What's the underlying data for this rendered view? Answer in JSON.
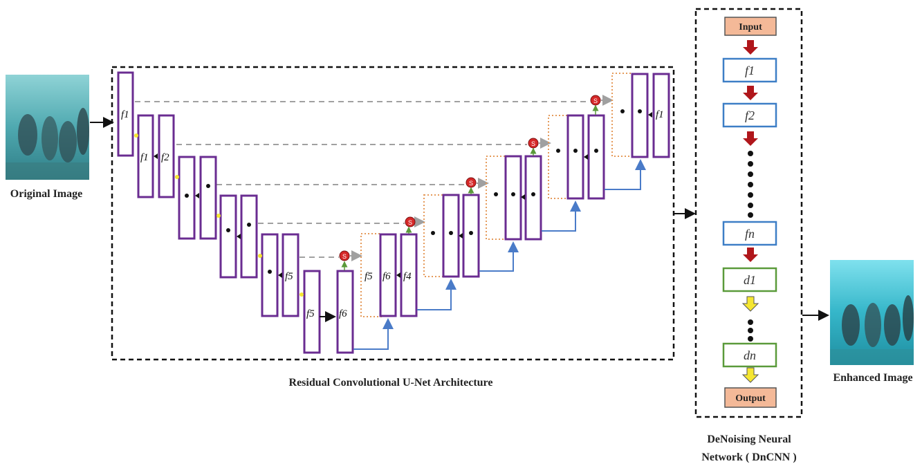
{
  "labels": {
    "original_image": "Original Image",
    "enhanced_image": "Enhanced Image",
    "unet_title": "Residual Convolutional U-Net Architecture",
    "dncnn_title_line1": "DeNoising Neural",
    "dncnn_title_line2": "Network  ( DnCNN )"
  },
  "unet": {
    "block_labels": {
      "e1": "f1",
      "e2a": "f1",
      "e2b": "f2",
      "e5b": "f5",
      "e6": "f5",
      "e6d": "f6",
      "d5a": "f5",
      "d5b": "f6",
      "d5c": "f4",
      "d1": "f1"
    },
    "sum_symbol": "S"
  },
  "dncnn": {
    "input_label": "Input",
    "output_label": "Output",
    "blocks": [
      "f1",
      "f2",
      "fn",
      "d1",
      "dn"
    ]
  },
  "colors": {
    "unet_block": "#6a2c91",
    "skip_line": "#a0a0a0",
    "upsample_line": "#4a7bc8",
    "concat_box": "#e59a5a",
    "sum_node": "#d62828",
    "dncnn_f_block": "#3d7ec6",
    "dncnn_d_block": "#5a9a3a",
    "io_box": "#f4b998",
    "red_arrow": "#b0161b",
    "yellow_arrow": "#f5e632"
  }
}
